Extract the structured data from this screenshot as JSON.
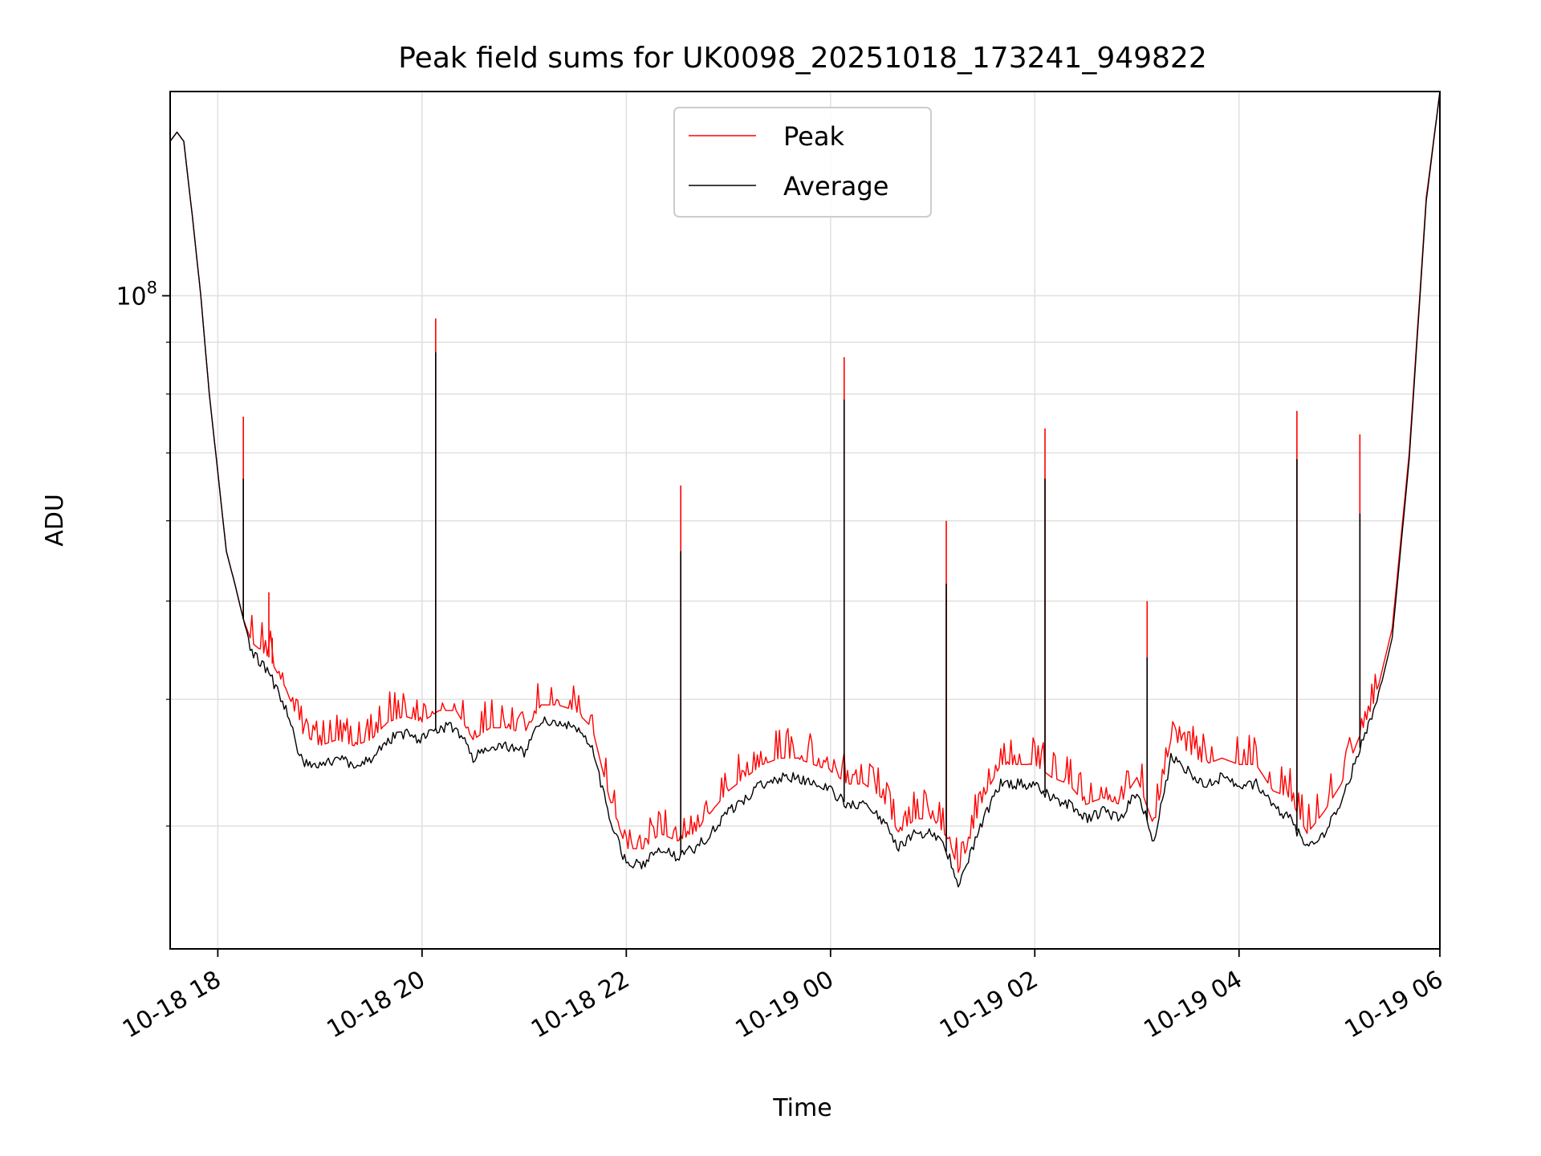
{
  "chart_data": {
    "type": "line",
    "title": "Peak field sums for UK0098_20251018_173241_949822",
    "xlabel": "Time",
    "ylabel": "ADU",
    "y_scale": "log",
    "grid": true,
    "legend_position": "upper center",
    "xlim": [
      "2025-10-18 17:32",
      "2025-10-19 05:58"
    ],
    "ylim": [
      22700000,
      159000000
    ],
    "x_ticks": [
      {
        "t": "2025-10-18 18:00",
        "label": "10-18 18"
      },
      {
        "t": "2025-10-18 20:00",
        "label": "10-18 20"
      },
      {
        "t": "2025-10-18 22:00",
        "label": "10-18 22"
      },
      {
        "t": "2025-10-19 00:00",
        "label": "10-19 00"
      },
      {
        "t": "2025-10-19 02:00",
        "label": "10-19 02"
      },
      {
        "t": "2025-10-19 04:00",
        "label": "10-19 04"
      },
      {
        "t": "2025-10-19 06:00",
        "label": "10-19 06"
      }
    ],
    "y_major_ticks": [
      {
        "value": 100000000,
        "base": "10",
        "exp": "8"
      }
    ],
    "y_minor_ticks": [
      30000000,
      40000000,
      50000000,
      60000000,
      70000000,
      80000000,
      90000000,
      200000000
    ],
    "series": [
      {
        "name": "Peak",
        "color": "#ff0000",
        "noise": 0.07,
        "points": [
          [
            "2025-10-18 17:32",
            142000000
          ],
          [
            "2025-10-18 17:36",
            145000000
          ],
          [
            "2025-10-18 17:40",
            142000000
          ],
          [
            "2025-10-18 17:45",
            120000000
          ],
          [
            "2025-10-18 17:50",
            100000000
          ],
          [
            "2025-10-18 17:55",
            80000000
          ],
          [
            "2025-10-18 18:00",
            67000000
          ],
          [
            "2025-10-18 18:05",
            56000000
          ],
          [
            "2025-10-18 18:10",
            52000000
          ],
          [
            "2025-10-18 18:15",
            48000000
          ],
          [
            "2025-10-18 18:20",
            45500000
          ],
          [
            "2025-10-18 18:30",
            44000000
          ],
          [
            "2025-10-18 18:40",
            41000000
          ],
          [
            "2025-10-18 18:50",
            37000000
          ],
          [
            "2025-10-18 19:00",
            36000000
          ],
          [
            "2025-10-18 19:10",
            36500000
          ],
          [
            "2025-10-18 19:20",
            36000000
          ],
          [
            "2025-10-18 19:30",
            36500000
          ],
          [
            "2025-10-18 19:40",
            38000000
          ],
          [
            "2025-10-18 19:50",
            38500000
          ],
          [
            "2025-10-18 20:00",
            38000000
          ],
          [
            "2025-10-18 20:10",
            39000000
          ],
          [
            "2025-10-18 20:20",
            39000000
          ],
          [
            "2025-10-18 20:30",
            36500000
          ],
          [
            "2025-10-18 20:40",
            37500000
          ],
          [
            "2025-10-18 20:50",
            37500000
          ],
          [
            "2025-10-18 21:00",
            37000000
          ],
          [
            "2025-10-18 21:10",
            39500000
          ],
          [
            "2025-10-18 21:20",
            39500000
          ],
          [
            "2025-10-18 21:30",
            39000000
          ],
          [
            "2025-10-18 21:40",
            37500000
          ],
          [
            "2025-10-18 21:50",
            32000000
          ],
          [
            "2025-10-18 22:00",
            28500000
          ],
          [
            "2025-10-18 22:10",
            28500000
          ],
          [
            "2025-10-18 22:20",
            29500000
          ],
          [
            "2025-10-18 22:30",
            29000000
          ],
          [
            "2025-10-18 22:40",
            29500000
          ],
          [
            "2025-10-18 22:50",
            31000000
          ],
          [
            "2025-10-18 23:00",
            32500000
          ],
          [
            "2025-10-18 23:10",
            33500000
          ],
          [
            "2025-10-18 23:20",
            34500000
          ],
          [
            "2025-10-18 23:30",
            35000000
          ],
          [
            "2025-10-18 23:40",
            35000000
          ],
          [
            "2025-10-18 23:50",
            34500000
          ],
          [
            "2025-10-19 00:00",
            34000000
          ],
          [
            "2025-10-19 00:10",
            33000000
          ],
          [
            "2025-10-19 00:20",
            33000000
          ],
          [
            "2025-10-19 00:30",
            32000000
          ],
          [
            "2025-10-19 00:40",
            29500000
          ],
          [
            "2025-10-19 00:50",
            30500000
          ],
          [
            "2025-10-19 01:00",
            30500000
          ],
          [
            "2025-10-19 01:10",
            29000000
          ],
          [
            "2025-10-19 01:15",
            27000000
          ],
          [
            "2025-10-19 01:20",
            28500000
          ],
          [
            "2025-10-19 01:30",
            32000000
          ],
          [
            "2025-10-19 01:40",
            34500000
          ],
          [
            "2025-10-19 01:50",
            34500000
          ],
          [
            "2025-10-19 02:00",
            34500000
          ],
          [
            "2025-10-19 02:10",
            33500000
          ],
          [
            "2025-10-19 02:20",
            33000000
          ],
          [
            "2025-10-19 02:30",
            31500000
          ],
          [
            "2025-10-19 02:40",
            32000000
          ],
          [
            "2025-10-19 02:50",
            31500000
          ],
          [
            "2025-10-19 03:00",
            33500000
          ],
          [
            "2025-10-19 03:10",
            30000000
          ],
          [
            "2025-10-19 03:20",
            36500000
          ],
          [
            "2025-10-19 03:30",
            35500000
          ],
          [
            "2025-10-19 03:40",
            34500000
          ],
          [
            "2025-10-19 03:50",
            35000000
          ],
          [
            "2025-10-19 04:00",
            34500000
          ],
          [
            "2025-10-19 04:10",
            34500000
          ],
          [
            "2025-10-19 04:20",
            32500000
          ],
          [
            "2025-10-19 04:30",
            32000000
          ],
          [
            "2025-10-19 04:40",
            29500000
          ],
          [
            "2025-10-19 04:50",
            31000000
          ],
          [
            "2025-10-19 05:00",
            33000000
          ],
          [
            "2025-10-19 05:10",
            36500000
          ],
          [
            "2025-10-19 05:20",
            40000000
          ],
          [
            "2025-10-19 05:30",
            47000000
          ],
          [
            "2025-10-19 05:40",
            70000000
          ],
          [
            "2025-10-19 05:50",
            125000000
          ],
          [
            "2025-10-19 05:58",
            159000000
          ]
        ],
        "spikes": [
          [
            "2025-10-18 18:15",
            76000000
          ],
          [
            "2025-10-18 18:30",
            51000000
          ],
          [
            "2025-10-18 18:32",
            46000000
          ],
          [
            "2025-10-18 20:08",
            95000000
          ],
          [
            "2025-10-18 22:32",
            65000000
          ],
          [
            "2025-10-19 00:08",
            87000000
          ],
          [
            "2025-10-19 01:08",
            60000000
          ],
          [
            "2025-10-19 02:06",
            74000000
          ],
          [
            "2025-10-19 03:06",
            50000000
          ],
          [
            "2025-10-19 04:34",
            77000000
          ],
          [
            "2025-10-19 05:11",
            73000000
          ]
        ]
      },
      {
        "name": "Average",
        "color": "#000000",
        "noise": 0.025,
        "points": [
          [
            "2025-10-18 17:32",
            142000000
          ],
          [
            "2025-10-18 17:36",
            145000000
          ],
          [
            "2025-10-18 17:40",
            142000000
          ],
          [
            "2025-10-18 17:45",
            120000000
          ],
          [
            "2025-10-18 17:50",
            100000000
          ],
          [
            "2025-10-18 17:55",
            80000000
          ],
          [
            "2025-10-18 18:00",
            67000000
          ],
          [
            "2025-10-18 18:05",
            56000000
          ],
          [
            "2025-10-18 18:10",
            52000000
          ],
          [
            "2025-10-18 18:15",
            48000000
          ],
          [
            "2025-10-18 18:20",
            44500000
          ],
          [
            "2025-10-18 18:30",
            42500000
          ],
          [
            "2025-10-18 18:40",
            39000000
          ],
          [
            "2025-10-18 18:50",
            34500000
          ],
          [
            "2025-10-18 19:00",
            34500000
          ],
          [
            "2025-10-18 19:10",
            35000000
          ],
          [
            "2025-10-18 19:20",
            34500000
          ],
          [
            "2025-10-18 19:30",
            35000000
          ],
          [
            "2025-10-18 19:40",
            36500000
          ],
          [
            "2025-10-18 19:50",
            37000000
          ],
          [
            "2025-10-18 20:00",
            36500000
          ],
          [
            "2025-10-18 20:10",
            37500000
          ],
          [
            "2025-10-18 20:20",
            37500000
          ],
          [
            "2025-10-18 20:30",
            35000000
          ],
          [
            "2025-10-18 20:40",
            36000000
          ],
          [
            "2025-10-18 20:50",
            36000000
          ],
          [
            "2025-10-18 21:00",
            35500000
          ],
          [
            "2025-10-18 21:10",
            38000000
          ],
          [
            "2025-10-18 21:20",
            38000000
          ],
          [
            "2025-10-18 21:30",
            37500000
          ],
          [
            "2025-10-18 21:40",
            36000000
          ],
          [
            "2025-10-18 21:50",
            30500000
          ],
          [
            "2025-10-18 22:00",
            27500000
          ],
          [
            "2025-10-18 22:10",
            27500000
          ],
          [
            "2025-10-18 22:20",
            28500000
          ],
          [
            "2025-10-18 22:30",
            28000000
          ],
          [
            "2025-10-18 22:40",
            28500000
          ],
          [
            "2025-10-18 22:50",
            29500000
          ],
          [
            "2025-10-18 23:00",
            31000000
          ],
          [
            "2025-10-18 23:10",
            32000000
          ],
          [
            "2025-10-18 23:20",
            33000000
          ],
          [
            "2025-10-18 23:30",
            33500000
          ],
          [
            "2025-10-18 23:40",
            33500000
          ],
          [
            "2025-10-18 23:50",
            33000000
          ],
          [
            "2025-10-19 00:00",
            32500000
          ],
          [
            "2025-10-19 00:10",
            31500000
          ],
          [
            "2025-10-19 00:20",
            31500000
          ],
          [
            "2025-10-19 00:30",
            30500000
          ],
          [
            "2025-10-19 00:40",
            28500000
          ],
          [
            "2025-10-19 00:50",
            29500000
          ],
          [
            "2025-10-19 01:00",
            29500000
          ],
          [
            "2025-10-19 01:10",
            28000000
          ],
          [
            "2025-10-19 01:15",
            26000000
          ],
          [
            "2025-10-19 01:20",
            27500000
          ],
          [
            "2025-10-19 01:30",
            30500000
          ],
          [
            "2025-10-19 01:40",
            33000000
          ],
          [
            "2025-10-19 01:50",
            33000000
          ],
          [
            "2025-10-19 02:00",
            33000000
          ],
          [
            "2025-10-19 02:10",
            32000000
          ],
          [
            "2025-10-19 02:20",
            31500000
          ],
          [
            "2025-10-19 02:30",
            30500000
          ],
          [
            "2025-10-19 02:40",
            31000000
          ],
          [
            "2025-10-19 02:50",
            30500000
          ],
          [
            "2025-10-19 03:00",
            32500000
          ],
          [
            "2025-10-19 03:10",
            29000000
          ],
          [
            "2025-10-19 03:20",
            35000000
          ],
          [
            "2025-10-19 03:30",
            34000000
          ],
          [
            "2025-10-19 03:40",
            33000000
          ],
          [
            "2025-10-19 03:50",
            33500000
          ],
          [
            "2025-10-19 04:00",
            33000000
          ],
          [
            "2025-10-19 04:10",
            33000000
          ],
          [
            "2025-10-19 04:20",
            31500000
          ],
          [
            "2025-10-19 04:30",
            30500000
          ],
          [
            "2025-10-19 04:40",
            28500000
          ],
          [
            "2025-10-19 04:50",
            29500000
          ],
          [
            "2025-10-19 05:00",
            31500000
          ],
          [
            "2025-10-19 05:10",
            35500000
          ],
          [
            "2025-10-19 05:20",
            39000000
          ],
          [
            "2025-10-19 05:30",
            46000000
          ],
          [
            "2025-10-19 05:40",
            69000000
          ],
          [
            "2025-10-19 05:50",
            124000000
          ],
          [
            "2025-10-19 05:58",
            159000000
          ]
        ],
        "spikes": [
          [
            "2025-10-18 18:15",
            66000000
          ],
          [
            "2025-10-18 20:08",
            88000000
          ],
          [
            "2025-10-18 22:32",
            56000000
          ],
          [
            "2025-10-19 00:08",
            79000000
          ],
          [
            "2025-10-19 01:08",
            52000000
          ],
          [
            "2025-10-19 02:06",
            66000000
          ],
          [
            "2025-10-19 03:06",
            44000000
          ],
          [
            "2025-10-19 04:34",
            69000000
          ],
          [
            "2025-10-19 05:11",
            61000000
          ]
        ]
      }
    ]
  }
}
